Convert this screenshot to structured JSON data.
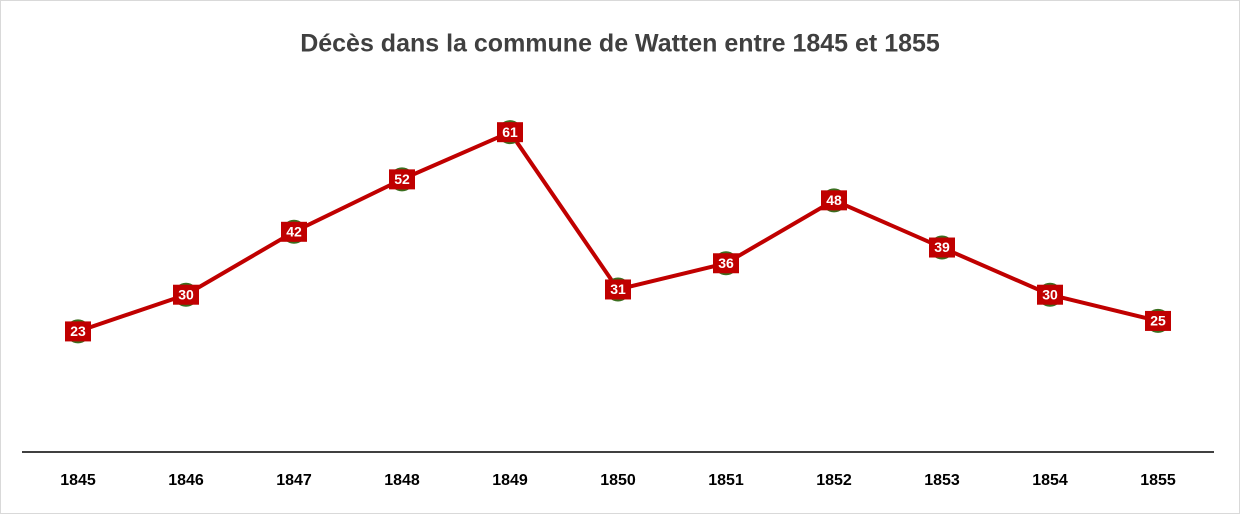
{
  "chart_data": {
    "type": "line",
    "title": "Décès dans la commune de Watten entre 1845 et 1855",
    "categories": [
      "1845",
      "1846",
      "1847",
      "1848",
      "1849",
      "1850",
      "1851",
      "1852",
      "1853",
      "1854",
      "1855"
    ],
    "values": [
      23,
      30,
      42,
      52,
      61,
      31,
      36,
      48,
      39,
      30,
      25
    ],
    "color": "#c00000",
    "marker_edge_color": "#3a6e1f",
    "ylim": [
      0,
      70
    ]
  }
}
